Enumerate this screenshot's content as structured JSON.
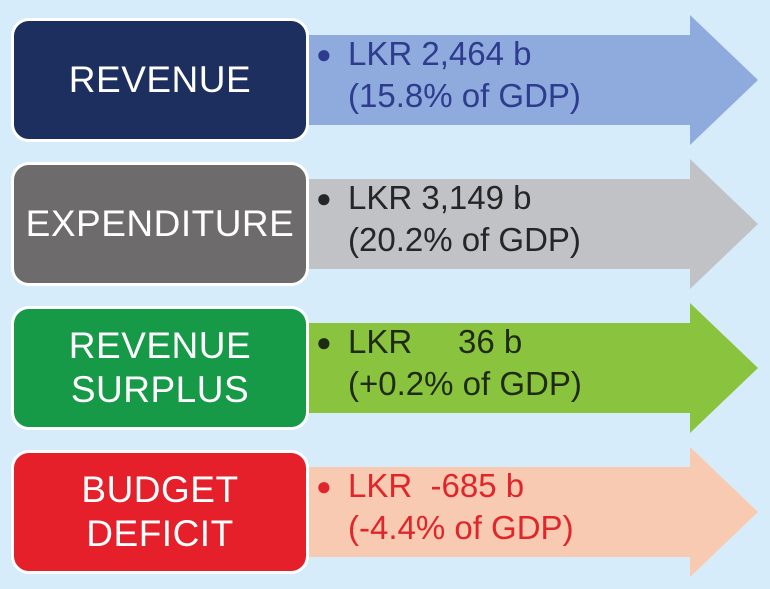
{
  "rows": [
    {
      "label_lines": [
        "REVENUE"
      ],
      "value": "LKR 2,464 b",
      "pct": "(15.8% of GDP)",
      "box_color": "#1c2f5e",
      "arrow_color": "#8fabde",
      "text_color": "#2d3c8c"
    },
    {
      "label_lines": [
        "EXPENDITURE"
      ],
      "value": "LKR 3,149 b",
      "pct": "(20.2% of GDP)",
      "box_color": "#6d6b6b",
      "arrow_color": "#c1c2c6",
      "text_color": "#262626"
    },
    {
      "label_lines": [
        "REVENUE",
        "SURPLUS"
      ],
      "value": "LKR     36 b",
      "pct": "(+0.2% of GDP)",
      "box_color": "#169a48",
      "arrow_color": "#8ac43f",
      "text_color": "#1f2a14"
    },
    {
      "label_lines": [
        "BUDGET",
        "DEFICIT"
      ],
      "value": "LKR  -685 b",
      "pct": "(-4.4% of GDP)",
      "box_color": "#e5202a",
      "arrow_color": "#f8cab1",
      "text_color": "#e0252b"
    }
  ]
}
